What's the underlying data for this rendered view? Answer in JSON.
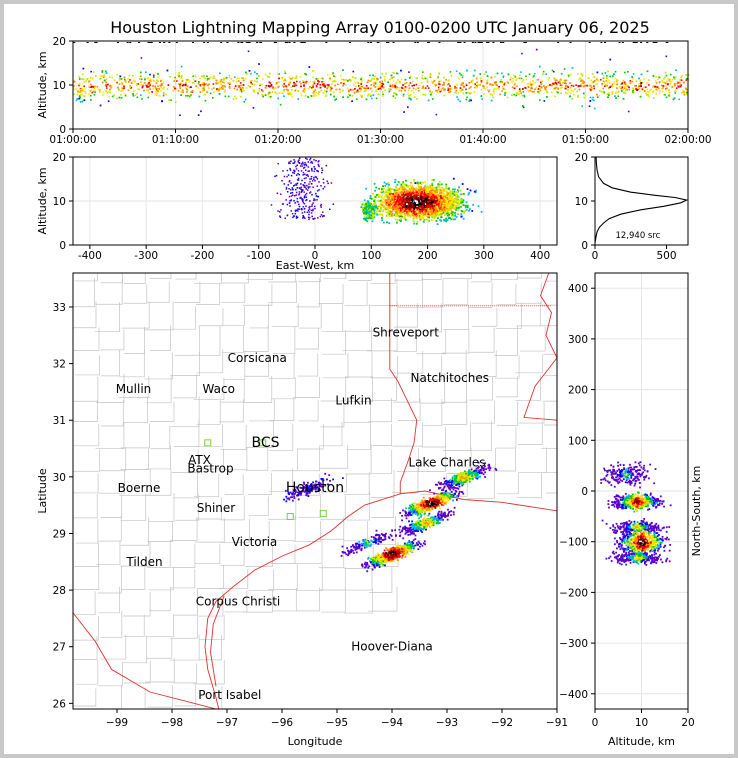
{
  "title": "Houston Lightning Mapping Array 0100-0200 UTC January 06, 2025",
  "chart_data": [
    {
      "type": "scatter",
      "panel": "altitude-time",
      "ylabel": "Altitude, km",
      "xlim": [
        "01:00:00",
        "02:00:00"
      ],
      "ylim": [
        0,
        20
      ],
      "x_ticks": [
        "01:00:00",
        "01:10:00",
        "01:20:00",
        "01:30:00",
        "01:40:00",
        "01:50:00",
        "02:00:00"
      ],
      "y_ticks": [
        0,
        10,
        20
      ],
      "description": "VHF sources concentrated between roughly 5 and 14 km throughout the hour, centered near 10 km"
    },
    {
      "type": "scatter",
      "panel": "altitude-eastwest",
      "xlabel": "East-West, km",
      "ylabel": "Altitude, km",
      "xlim": [
        -430,
        430
      ],
      "ylim": [
        0,
        20
      ],
      "x_ticks": [
        -400,
        -300,
        -200,
        -100,
        0,
        100,
        200,
        300,
        400
      ],
      "y_ticks": [
        0,
        10,
        20
      ],
      "clusters": [
        {
          "x_range": [
            80,
            110
          ],
          "alt_range": [
            6,
            10
          ]
        },
        {
          "x_range": [
            120,
            300
          ],
          "alt_range": [
            4,
            15
          ],
          "peak_x": 175,
          "peak_alt": 10
        },
        {
          "x_range": [
            -40,
            10
          ],
          "alt_range": [
            5,
            20
          ],
          "sparse": true
        }
      ]
    },
    {
      "type": "line",
      "panel": "altitude-histogram",
      "xlim": [
        0,
        650
      ],
      "ylim": [
        0,
        20
      ],
      "x_ticks": [
        0,
        500
      ],
      "y_ticks": [
        0,
        10,
        20
      ],
      "annotation": "12,940 src",
      "points": [
        [
          0,
          0.5
        ],
        [
          8,
          2
        ],
        [
          15,
          3
        ],
        [
          30,
          4
        ],
        [
          60,
          5
        ],
        [
          100,
          6
        ],
        [
          180,
          7
        ],
        [
          320,
          8
        ],
        [
          480,
          8.8
        ],
        [
          600,
          9.6
        ],
        [
          640,
          10.2
        ],
        [
          560,
          10.8
        ],
        [
          420,
          11.3
        ],
        [
          250,
          12
        ],
        [
          120,
          13
        ],
        [
          60,
          14
        ],
        [
          25,
          15.5
        ],
        [
          15,
          17
        ],
        [
          10,
          18.5
        ],
        [
          8,
          20
        ]
      ]
    },
    {
      "type": "scatter",
      "panel": "plan-view-map",
      "xlabel": "Longitude",
      "ylabel": "Latitude",
      "xlim": [
        -99.8,
        -91
      ],
      "ylim": [
        25.9,
        33.6
      ],
      "x_ticks": [
        -99,
        -98,
        -97,
        -96,
        -95,
        -94,
        -93,
        -92,
        -91
      ],
      "y_ticks": [
        26,
        27,
        28,
        29,
        30,
        31,
        32,
        33
      ],
      "clusters": [
        {
          "lon": -94.0,
          "lat": 28.65,
          "intensity": "high"
        },
        {
          "lon": -93.3,
          "lat": 29.55,
          "intensity": "high"
        },
        {
          "lon": -92.7,
          "lat": 30.0,
          "intensity": "medium"
        },
        {
          "lon": -93.4,
          "lat": 29.2,
          "intensity": "medium"
        },
        {
          "lon": -94.45,
          "lat": 28.85,
          "intensity": "low"
        },
        {
          "lon": -95.55,
          "lat": 29.8,
          "intensity": "low",
          "sparse": true
        }
      ]
    },
    {
      "type": "scatter",
      "panel": "northsouth-altitude",
      "xlabel": "Altitude, km",
      "ylabel": "North-South, km",
      "xlim": [
        0,
        20
      ],
      "ylim": [
        -430,
        430
      ],
      "x_ticks": [
        0,
        10,
        20
      ],
      "y_ticks": [
        -400,
        -300,
        -200,
        -100,
        0,
        100,
        200,
        300,
        400
      ],
      "clusters": [
        {
          "ns_range": [
            10,
            60
          ],
          "alt_range": [
            4,
            15
          ]
        },
        {
          "ns_range": [
            -40,
            0
          ],
          "alt_range": [
            3,
            19
          ],
          "peak_alt": 9
        },
        {
          "ns_range": [
            -150,
            -50
          ],
          "alt_range": [
            3,
            19
          ],
          "peak_alt": 10
        }
      ]
    }
  ],
  "map_labels": [
    {
      "text": "Shreveport",
      "lon": -93.75,
      "lat": 32.55,
      "color": "#000000",
      "size": 12
    },
    {
      "text": "Corsicana",
      "lon": -96.45,
      "lat": 32.1,
      "color": "#000000",
      "size": 12
    },
    {
      "text": "Natchitoches",
      "lon": -92.95,
      "lat": 31.75,
      "color": "#000000",
      "size": 12
    },
    {
      "text": "Mullin",
      "lon": -98.7,
      "lat": 31.55,
      "color": "#f08a4b",
      "size": 12
    },
    {
      "text": "Waco",
      "lon": -97.15,
      "lat": 31.55,
      "color": "#000000",
      "size": 12
    },
    {
      "text": "Lufkin",
      "lon": -94.7,
      "lat": 31.35,
      "color": "#000000",
      "size": 12
    },
    {
      "text": "BCS",
      "lon": -96.3,
      "lat": 30.6,
      "color": "#000000",
      "size": 14
    },
    {
      "text": "ATX",
      "lon": -97.5,
      "lat": 30.3,
      "color": "#f08a4b",
      "size": 12
    },
    {
      "text": "Bastrop",
      "lon": -97.3,
      "lat": 30.15,
      "color": "#000000",
      "size": 12
    },
    {
      "text": "Lake Charles",
      "lon": -93.0,
      "lat": 30.25,
      "color": "#000000",
      "size": 12
    },
    {
      "text": "Houston",
      "lon": -95.4,
      "lat": 29.8,
      "color": "#f2a100",
      "size": 14
    },
    {
      "text": "Boerne",
      "lon": -98.6,
      "lat": 29.8,
      "color": "#000000",
      "size": 12
    },
    {
      "text": "Shiner",
      "lon": -97.2,
      "lat": 29.45,
      "color": "#000000",
      "size": 12
    },
    {
      "text": "Victoria",
      "lon": -96.5,
      "lat": 28.85,
      "color": "#000000",
      "size": 12
    },
    {
      "text": "Tilden",
      "lon": -98.5,
      "lat": 28.5,
      "color": "#000000",
      "size": 12
    },
    {
      "text": "Corpus Christi",
      "lon": -96.8,
      "lat": 27.8,
      "color": "#000000",
      "size": 12
    },
    {
      "text": "Hoover-Diana",
      "lon": -94.0,
      "lat": 27.0,
      "color": "#1a1adc",
      "size": 12
    },
    {
      "text": "Port Isabel",
      "lon": -96.95,
      "lat": 26.15,
      "color": "#000000",
      "size": 12
    }
  ],
  "colors": {
    "density_scale": [
      "#5a00c8",
      "#0000ff",
      "#00b4ff",
      "#00c800",
      "#c8e600",
      "#ffe600",
      "#ff8c00",
      "#ff0000",
      "#8b0000",
      "#000000",
      "#ffffff"
    ],
    "coast": "#e03030",
    "county": "#c4c4c4"
  }
}
